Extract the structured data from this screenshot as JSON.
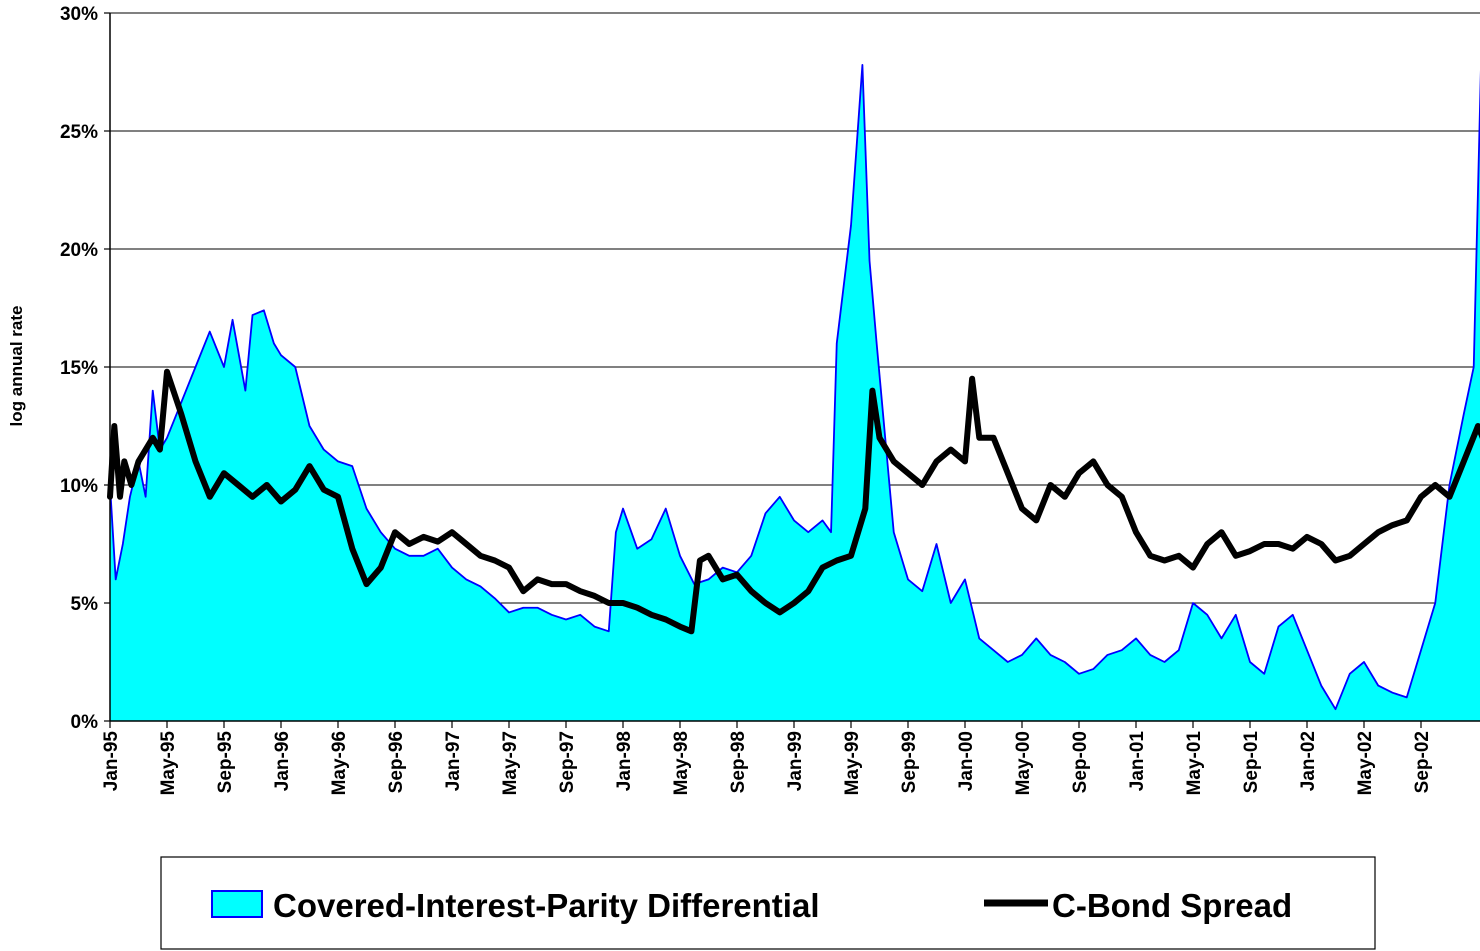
{
  "chart_data": {
    "type": "area",
    "ylabel": "log annual rate",
    "ylim": [
      0,
      30
    ],
    "y_ticks": [
      "0%",
      "5%",
      "10%",
      "15%",
      "20%",
      "25%",
      "30%"
    ],
    "y_tick_values": [
      0,
      5,
      10,
      15,
      20,
      25,
      30
    ],
    "x_ticks": [
      "Jan-95",
      "May-95",
      "Sep-95",
      "Jan-96",
      "May-96",
      "Sep-96",
      "Jan-97",
      "May-97",
      "Sep-97",
      "Jan-98",
      "May-98",
      "Sep-98",
      "Jan-99",
      "May-99",
      "Sep-99",
      "Jan-00",
      "May-00",
      "Sep-00",
      "Jan-01",
      "May-01",
      "Sep-01",
      "Jan-02",
      "May-02",
      "Sep-02"
    ],
    "x_unit": "months since Jan-95",
    "grid": "horizontal",
    "colors": {
      "area_fill": "#00ffff",
      "area_line": "#0000ff",
      "bond_line": "#000000",
      "grid": "#000000"
    },
    "series": [
      {
        "name": "Covered-Interest-Parity Differential",
        "style": "area",
        "points": [
          [
            0,
            10
          ],
          [
            0.4,
            6
          ],
          [
            0.9,
            7.5
          ],
          [
            1.4,
            9.5
          ],
          [
            2,
            11
          ],
          [
            2.5,
            9.5
          ],
          [
            3,
            14
          ],
          [
            3.5,
            11.5
          ],
          [
            4,
            12
          ],
          [
            5,
            13.5
          ],
          [
            6,
            15
          ],
          [
            7,
            16.5
          ],
          [
            8,
            15
          ],
          [
            8.6,
            17
          ],
          [
            9.5,
            14
          ],
          [
            10,
            17.2
          ],
          [
            10.8,
            17.4
          ],
          [
            11.5,
            16
          ],
          [
            12,
            15.5
          ],
          [
            13,
            15
          ],
          [
            14,
            12.5
          ],
          [
            15,
            11.5
          ],
          [
            16,
            11
          ],
          [
            17,
            10.8
          ],
          [
            18,
            9
          ],
          [
            19,
            8
          ],
          [
            20,
            7.3
          ],
          [
            21,
            7
          ],
          [
            22,
            7
          ],
          [
            23,
            7.3
          ],
          [
            24,
            6.5
          ],
          [
            25,
            6
          ],
          [
            26,
            5.7
          ],
          [
            27,
            5.2
          ],
          [
            28,
            4.6
          ],
          [
            29,
            4.8
          ],
          [
            30,
            4.8
          ],
          [
            31,
            4.5
          ],
          [
            32,
            4.3
          ],
          [
            33,
            4.5
          ],
          [
            34,
            4
          ],
          [
            35,
            3.8
          ],
          [
            35.5,
            8
          ],
          [
            36,
            9
          ],
          [
            37,
            7.3
          ],
          [
            38,
            7.7
          ],
          [
            39,
            9
          ],
          [
            40,
            7
          ],
          [
            41,
            5.8
          ],
          [
            42,
            6
          ],
          [
            43,
            6.5
          ],
          [
            44,
            6.3
          ],
          [
            45,
            7
          ],
          [
            46,
            8.8
          ],
          [
            47,
            9.5
          ],
          [
            48,
            8.5
          ],
          [
            49,
            8
          ],
          [
            50,
            8.5
          ],
          [
            50.6,
            8
          ],
          [
            51,
            16
          ],
          [
            52,
            21
          ],
          [
            52.8,
            27.8
          ],
          [
            53.3,
            19.5
          ],
          [
            53.8,
            16
          ],
          [
            55,
            8
          ],
          [
            56,
            6
          ],
          [
            57,
            5.5
          ],
          [
            58,
            7.5
          ],
          [
            59,
            5
          ],
          [
            60,
            6
          ],
          [
            61,
            3.5
          ],
          [
            62,
            3
          ],
          [
            63,
            2.5
          ],
          [
            64,
            2.8
          ],
          [
            65,
            3.5
          ],
          [
            66,
            2.8
          ],
          [
            67,
            2.5
          ],
          [
            68,
            2
          ],
          [
            69,
            2.2
          ],
          [
            70,
            2.8
          ],
          [
            71,
            3
          ],
          [
            72,
            3.5
          ],
          [
            73,
            2.8
          ],
          [
            74,
            2.5
          ],
          [
            75,
            3
          ],
          [
            76,
            5
          ],
          [
            77,
            4.5
          ],
          [
            78,
            3.5
          ],
          [
            79,
            4.5
          ],
          [
            80,
            2.5
          ],
          [
            81,
            2
          ],
          [
            82,
            4
          ],
          [
            83,
            4.5
          ],
          [
            84,
            3
          ],
          [
            85,
            1.5
          ],
          [
            86,
            0.5
          ],
          [
            87,
            2
          ],
          [
            88,
            2.5
          ],
          [
            89,
            1.5
          ],
          [
            90,
            1.2
          ],
          [
            91,
            1
          ],
          [
            92,
            3
          ],
          [
            93,
            5
          ],
          [
            94,
            10
          ],
          [
            95,
            13
          ],
          [
            95.7,
            15
          ],
          [
            96.3,
            30
          ],
          [
            97,
            16
          ],
          [
            98,
            22
          ],
          [
            99,
            26
          ],
          [
            99.6,
            30
          ],
          [
            100,
            27
          ],
          [
            101,
            26.5
          ],
          [
            102,
            16
          ],
          [
            103,
            23
          ],
          [
            104,
            21
          ],
          [
            104.5,
            16
          ],
          [
            105,
            14.5
          ]
        ]
      },
      {
        "name": "C-Bond Spread",
        "style": "line",
        "points": [
          [
            0,
            9.5
          ],
          [
            0.3,
            12.5
          ],
          [
            0.7,
            9.5
          ],
          [
            1,
            11
          ],
          [
            1.5,
            10
          ],
          [
            2,
            11
          ],
          [
            3,
            12
          ],
          [
            3.5,
            11.5
          ],
          [
            4,
            14.8
          ],
          [
            5,
            13
          ],
          [
            6,
            11
          ],
          [
            7,
            9.5
          ],
          [
            8,
            10.5
          ],
          [
            9,
            10
          ],
          [
            10,
            9.5
          ],
          [
            11,
            10
          ],
          [
            12,
            9.3
          ],
          [
            13,
            9.8
          ],
          [
            14,
            10.8
          ],
          [
            15,
            9.8
          ],
          [
            16,
            9.5
          ],
          [
            17,
            7.3
          ],
          [
            18,
            5.8
          ],
          [
            19,
            6.5
          ],
          [
            20,
            8
          ],
          [
            21,
            7.5
          ],
          [
            22,
            7.8
          ],
          [
            23,
            7.6
          ],
          [
            24,
            8
          ],
          [
            25,
            7.5
          ],
          [
            26,
            7
          ],
          [
            27,
            6.8
          ],
          [
            28,
            6.5
          ],
          [
            29,
            5.5
          ],
          [
            30,
            6
          ],
          [
            31,
            5.8
          ],
          [
            32,
            5.8
          ],
          [
            33,
            5.5
          ],
          [
            34,
            5.3
          ],
          [
            35,
            5
          ],
          [
            36,
            5
          ],
          [
            37,
            4.8
          ],
          [
            38,
            4.5
          ],
          [
            39,
            4.3
          ],
          [
            40,
            4
          ],
          [
            40.8,
            3.8
          ],
          [
            41.4,
            6.8
          ],
          [
            42,
            7
          ],
          [
            43,
            6
          ],
          [
            44,
            6.2
          ],
          [
            45,
            5.5
          ],
          [
            46,
            5
          ],
          [
            47,
            4.6
          ],
          [
            48,
            5
          ],
          [
            49,
            5.5
          ],
          [
            50,
            6.5
          ],
          [
            51,
            6.8
          ],
          [
            52,
            7
          ],
          [
            53,
            9
          ],
          [
            53.5,
            14
          ],
          [
            54,
            12
          ],
          [
            55,
            11
          ],
          [
            56,
            10.5
          ],
          [
            57,
            10
          ],
          [
            58,
            11
          ],
          [
            59,
            11.5
          ],
          [
            60,
            11
          ],
          [
            60.5,
            14.5
          ],
          [
            61,
            12
          ],
          [
            62,
            12
          ],
          [
            63,
            10.5
          ],
          [
            64,
            9
          ],
          [
            65,
            8.5
          ],
          [
            66,
            10
          ],
          [
            67,
            9.5
          ],
          [
            68,
            10.5
          ],
          [
            69,
            11
          ],
          [
            70,
            10
          ],
          [
            71,
            9.5
          ],
          [
            72,
            8
          ],
          [
            73,
            7
          ],
          [
            74,
            6.8
          ],
          [
            75,
            7
          ],
          [
            76,
            6.5
          ],
          [
            77,
            7.5
          ],
          [
            78,
            8
          ],
          [
            79,
            7
          ],
          [
            80,
            7.2
          ],
          [
            81,
            7.5
          ],
          [
            82,
            7.5
          ],
          [
            83,
            7.3
          ],
          [
            84,
            7.8
          ],
          [
            85,
            7.5
          ],
          [
            86,
            6.8
          ],
          [
            87,
            7
          ],
          [
            88,
            7.5
          ],
          [
            89,
            8
          ],
          [
            90,
            8.3
          ],
          [
            91,
            8.5
          ],
          [
            92,
            9.5
          ],
          [
            93,
            10
          ],
          [
            94,
            9.5
          ],
          [
            95,
            11
          ],
          [
            96,
            12.5
          ],
          [
            97,
            11
          ],
          [
            98,
            10
          ],
          [
            99,
            8
          ],
          [
            100,
            8.5
          ],
          [
            101,
            8.5
          ],
          [
            102,
            7.5
          ],
          [
            103,
            7
          ],
          [
            104,
            7.2
          ],
          [
            105,
            7.5
          ],
          [
            106,
            9
          ],
          [
            107,
            9.5
          ],
          [
            108,
            12
          ],
          [
            109,
            15
          ],
          [
            110,
            14.5
          ],
          [
            110.8,
            20.5
          ],
          [
            111.5,
            17
          ],
          [
            112,
            16
          ],
          [
            113,
            19
          ],
          [
            114,
            23
          ],
          [
            114.5,
            22
          ],
          [
            115,
            17
          ],
          [
            116,
            16
          ],
          [
            117,
            17.5
          ],
          [
            117.7,
            14.5
          ]
        ]
      }
    ]
  }
}
